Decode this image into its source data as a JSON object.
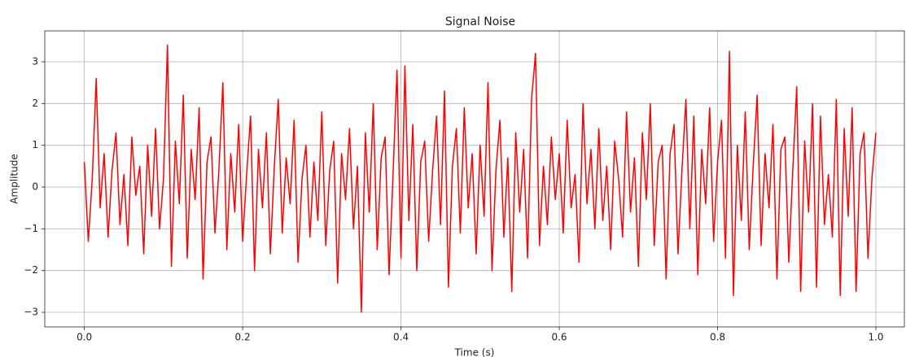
{
  "chart_data": {
    "type": "line",
    "title": "Signal Noise",
    "x_label": "Time (s)",
    "y_label": "Amplitude",
    "x": [
      0,
      0.005,
      0.01,
      0.015,
      0.02,
      0.025,
      0.03,
      0.035,
      0.04,
      0.045,
      0.05,
      0.055,
      0.06,
      0.065,
      0.07,
      0.075,
      0.08,
      0.085,
      0.09,
      0.095,
      0.1,
      0.105,
      0.11,
      0.115,
      0.12,
      0.125,
      0.13,
      0.135,
      0.14,
      0.145,
      0.15,
      0.155,
      0.16,
      0.165,
      0.17,
      0.175,
      0.18,
      0.185,
      0.19,
      0.195,
      0.2,
      0.205,
      0.21,
      0.215,
      0.22,
      0.225,
      0.23,
      0.235,
      0.24,
      0.245,
      0.25,
      0.255,
      0.26,
      0.265,
      0.27,
      0.275,
      0.28,
      0.285,
      0.29,
      0.295,
      0.3,
      0.305,
      0.31,
      0.315,
      0.32,
      0.325,
      0.33,
      0.335,
      0.34,
      0.345,
      0.35,
      0.355,
      0.36,
      0.365,
      0.37,
      0.375,
      0.38,
      0.385,
      0.39,
      0.395,
      0.4,
      0.405,
      0.41,
      0.415,
      0.42,
      0.425,
      0.43,
      0.435,
      0.44,
      0.445,
      0.45,
      0.455,
      0.46,
      0.465,
      0.47,
      0.475,
      0.48,
      0.485,
      0.49,
      0.495,
      0.5,
      0.505,
      0.51,
      0.515,
      0.52,
      0.525,
      0.53,
      0.535,
      0.54,
      0.545,
      0.55,
      0.555,
      0.56,
      0.565,
      0.57,
      0.575,
      0.58,
      0.585,
      0.59,
      0.595,
      0.6,
      0.605,
      0.61,
      0.615,
      0.62,
      0.625,
      0.63,
      0.635,
      0.64,
      0.645,
      0.65,
      0.655,
      0.66,
      0.665,
      0.67,
      0.675,
      0.68,
      0.685,
      0.69,
      0.695,
      0.7,
      0.705,
      0.71,
      0.715,
      0.72,
      0.725,
      0.73,
      0.735,
      0.74,
      0.745,
      0.75,
      0.755,
      0.76,
      0.765,
      0.77,
      0.775,
      0.78,
      0.785,
      0.79,
      0.795,
      0.8,
      0.805,
      0.81,
      0.815,
      0.82,
      0.825,
      0.83,
      0.835,
      0.84,
      0.845,
      0.85,
      0.855,
      0.86,
      0.865,
      0.87,
      0.875,
      0.88,
      0.885,
      0.89,
      0.895,
      0.9,
      0.905,
      0.91,
      0.915,
      0.92,
      0.925,
      0.93,
      0.935,
      0.94,
      0.945,
      0.95,
      0.955,
      0.96,
      0.965,
      0.97,
      0.975,
      0.98,
      0.985,
      0.99,
      0.995,
      1.0
    ],
    "series": [
      {
        "color": "#ff0000",
        "values": [
          0.6,
          -1.3,
          0.2,
          2.6,
          -0.5,
          0.8,
          -1.2,
          0.4,
          1.3,
          -0.9,
          0.3,
          -1.4,
          1.2,
          -0.2,
          0.5,
          -1.6,
          1.0,
          -0.7,
          1.4,
          -1.0,
          0.2,
          3.4,
          -1.9,
          1.1,
          -0.4,
          2.2,
          -1.7,
          0.9,
          -0.3,
          1.9,
          -2.2,
          0.6,
          1.2,
          -1.1,
          0.4,
          2.5,
          -1.5,
          0.8,
          -0.6,
          1.5,
          -1.3,
          0.3,
          1.7,
          -2.0,
          0.9,
          -0.5,
          1.3,
          -1.6,
          0.5,
          2.1,
          -1.1,
          0.7,
          -0.4,
          1.6,
          -1.8,
          0.2,
          1.0,
          -1.2,
          0.6,
          -0.8,
          1.8,
          -1.4,
          0.4,
          1.1,
          -2.3,
          0.8,
          -0.3,
          1.4,
          -1.0,
          0.5,
          -3.0,
          1.3,
          -0.6,
          2.0,
          -1.5,
          0.7,
          1.2,
          -2.1,
          0.3,
          2.8,
          -1.7,
          2.9,
          -0.8,
          1.5,
          -2.0,
          0.6,
          1.1,
          -1.3,
          0.4,
          1.7,
          -0.9,
          2.3,
          -2.4,
          0.5,
          1.4,
          -1.1,
          1.9,
          -0.5,
          0.8,
          -1.6,
          1.0,
          -0.7,
          2.5,
          -2.0,
          0.4,
          1.6,
          -1.2,
          0.7,
          -2.5,
          1.3,
          -0.6,
          0.9,
          -1.7,
          2.1,
          3.2,
          -1.4,
          0.5,
          -0.9,
          1.2,
          -0.3,
          0.8,
          -1.1,
          1.6,
          -0.5,
          0.3,
          -1.8,
          2.0,
          -0.4,
          0.9,
          -1.0,
          1.4,
          -0.8,
          0.5,
          -1.5,
          1.1,
          0.2,
          -1.2,
          1.8,
          -0.6,
          0.7,
          -1.9,
          1.3,
          -0.3,
          2.0,
          -1.4,
          0.6,
          1.0,
          -2.2,
          0.8,
          1.5,
          -1.6,
          0.4,
          2.1,
          -1.0,
          1.7,
          -2.1,
          0.9,
          -0.4,
          1.9,
          -1.3,
          0.6,
          1.6,
          -1.7,
          3.25,
          -2.6,
          1.0,
          -0.8,
          1.8,
          -1.5,
          0.5,
          2.2,
          -1.4,
          0.8,
          -0.5,
          1.5,
          -2.2,
          0.9,
          1.2,
          -1.8,
          0.4,
          2.4,
          -2.5,
          1.1,
          -0.6,
          2.0,
          -2.4,
          1.7,
          -0.9,
          0.3,
          -1.2,
          2.1,
          -2.6,
          1.4,
          -0.7,
          1.9,
          -2.5,
          0.8,
          1.3,
          -1.7,
          0.2,
          1.3
        ]
      }
    ],
    "xlim": [
      -0.05,
      1.036
    ],
    "ylim": [
      -3.35,
      3.74
    ],
    "xticks": [
      {
        "value": 0,
        "label": "0.0"
      },
      0.2,
      0.4,
      0.6,
      0.8,
      {
        "value": 1,
        "label": "1.0"
      }
    ],
    "yticks": [
      {
        "value": -3,
        "label": "−3"
      },
      {
        "value": -2,
        "label": "−2"
      },
      {
        "value": -1,
        "label": "−1"
      },
      0,
      1,
      2,
      3
    ],
    "grid": true
  }
}
